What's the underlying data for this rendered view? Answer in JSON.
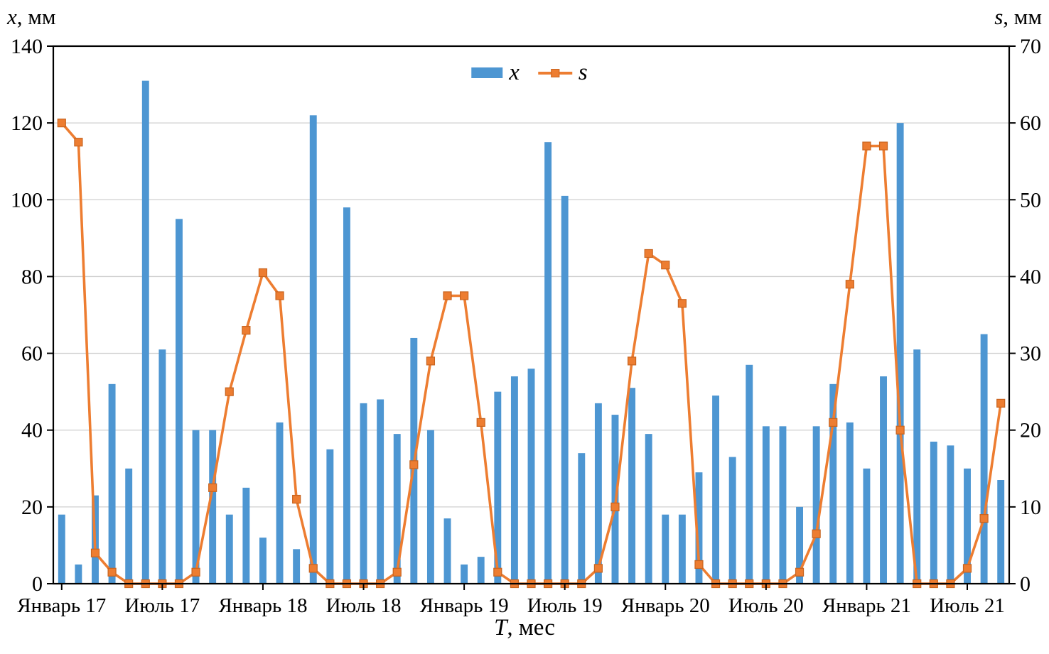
{
  "chart_data": {
    "type": "bar",
    "title": "",
    "x_axis": {
      "label_symbol": "T",
      "label_unit": ", мес",
      "tick_labels": [
        {
          "index": 0,
          "label": "Январь 17"
        },
        {
          "index": 6,
          "label": "Июль 17"
        },
        {
          "index": 12,
          "label": "Январь 18"
        },
        {
          "index": 18,
          "label": "Июль 18"
        },
        {
          "index": 24,
          "label": "Январь 19"
        },
        {
          "index": 30,
          "label": "Июль 19"
        },
        {
          "index": 36,
          "label": "Январь 20"
        },
        {
          "index": 42,
          "label": "Июль 20"
        },
        {
          "index": 48,
          "label": "Январь 21"
        },
        {
          "index": 54,
          "label": "Июль 21"
        }
      ]
    },
    "left_axis": {
      "symbol": "x",
      "unit": ", мм",
      "min": 0,
      "max": 140,
      "step": 20,
      "ticks": [
        0,
        20,
        40,
        60,
        80,
        100,
        120,
        140
      ]
    },
    "right_axis": {
      "symbol": "s",
      "unit": ", мм",
      "min": 0,
      "max": 70,
      "step": 10,
      "ticks": [
        0,
        10,
        20,
        30,
        40,
        50,
        60,
        70
      ]
    },
    "categories": [
      "2017-01",
      "2017-02",
      "2017-03",
      "2017-04",
      "2017-05",
      "2017-06",
      "2017-07",
      "2017-08",
      "2017-09",
      "2017-10",
      "2017-11",
      "2017-12",
      "2018-01",
      "2018-02",
      "2018-03",
      "2018-04",
      "2018-05",
      "2018-06",
      "2018-07",
      "2018-08",
      "2018-09",
      "2018-10",
      "2018-11",
      "2018-12",
      "2019-01",
      "2019-02",
      "2019-03",
      "2019-04",
      "2019-05",
      "2019-06",
      "2019-07",
      "2019-08",
      "2019-09",
      "2019-10",
      "2019-11",
      "2019-12",
      "2020-01",
      "2020-02",
      "2020-03",
      "2020-04",
      "2020-05",
      "2020-06",
      "2020-07",
      "2020-08",
      "2020-09",
      "2020-10",
      "2020-11",
      "2020-12",
      "2021-01",
      "2021-02",
      "2021-03",
      "2021-04",
      "2021-05",
      "2021-06",
      "2021-07",
      "2021-08",
      "2021-09"
    ],
    "series": [
      {
        "name": "x",
        "type": "bar",
        "axis": "left",
        "color": "#4D96D2",
        "values": [
          18,
          5,
          23,
          52,
          30,
          131,
          61,
          95,
          40,
          40,
          18,
          25,
          12,
          42,
          9,
          122,
          35,
          98,
          47,
          48,
          39,
          64,
          40,
          17,
          5,
          7,
          50,
          54,
          56,
          115,
          101,
          34,
          47,
          44,
          51,
          39,
          18,
          18,
          29,
          49,
          33,
          57,
          41,
          41,
          20,
          41,
          52,
          42,
          30,
          54,
          120,
          61,
          37,
          36,
          30,
          65,
          27
        ]
      },
      {
        "name": "s",
        "type": "line",
        "axis": "right",
        "color": "#ED7D31",
        "values": [
          60,
          57.5,
          4,
          1.5,
          0,
          0,
          0,
          0,
          1.5,
          12.5,
          25,
          33,
          40.5,
          37.5,
          11,
          2,
          0,
          0,
          0,
          0,
          1.5,
          15.5,
          29,
          37.5,
          37.5,
          21,
          1.5,
          0,
          0,
          0,
          0,
          0,
          2,
          10,
          29,
          43,
          41.5,
          36.5,
          2.5,
          0,
          0,
          0,
          0,
          0,
          1.5,
          6.5,
          21,
          39,
          57,
          57,
          20,
          0,
          0,
          0,
          2,
          8.5,
          23.5
        ]
      }
    ],
    "legend": {
      "position": "top-center",
      "items": [
        {
          "symbol": "bar-swatch",
          "label": "x",
          "color": "#4D96D2"
        },
        {
          "symbol": "line-square",
          "label": "s",
          "color": "#ED7D31"
        }
      ]
    },
    "grid": "horizontal-on"
  },
  "colors": {
    "bar": "#4D96D2",
    "line": "#ED7D31",
    "marker_edge": "#c8641f",
    "grid": "#cfcfcf",
    "axis": "#000000"
  }
}
